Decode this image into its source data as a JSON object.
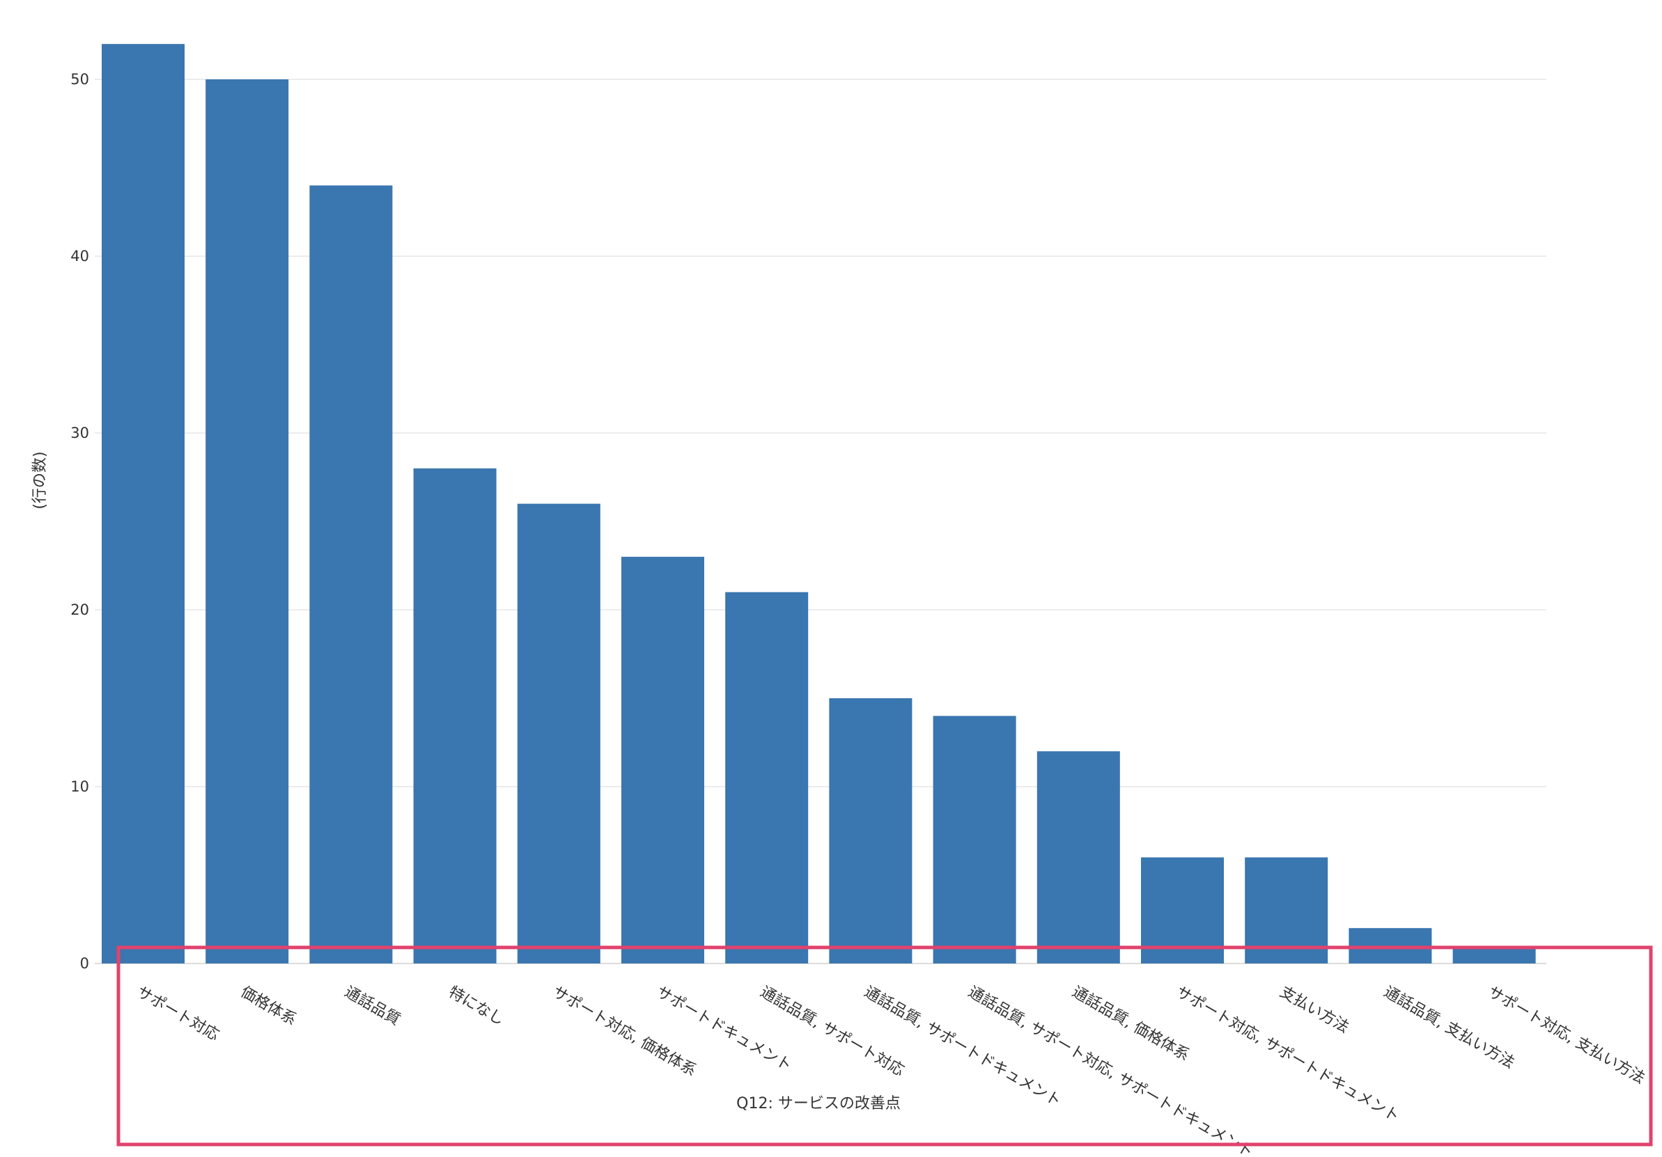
{
  "chart_data": {
    "type": "bar",
    "orientation": "vertical",
    "xlabel": "Q12: サービスの改善点",
    "ylabel": "(行の数)",
    "ylim": [
      0,
      52
    ],
    "yticks": [
      0,
      10,
      20,
      30,
      40,
      50
    ],
    "grid": true,
    "categories": [
      "サポート対応",
      "価格体系",
      "通話品質",
      "特になし",
      "サポート対応, 価格体系",
      "サポートドキュメント",
      "通話品質, サポート対応",
      "通話品質, サポートドキュメント",
      "通話品質, サポート対応, サポートドキュメント",
      "通話品質, 価格体系",
      "サポート対応, サポートドキュメント",
      "支払い方法",
      "通話品質, 支払い方法",
      "サポート対応, 支払い方法"
    ],
    "values": [
      52,
      50,
      44,
      28,
      26,
      23,
      21,
      15,
      14,
      12,
      6,
      6,
      2,
      1
    ],
    "colors": {
      "bar": "#3a76af",
      "highlight": "#e0436d",
      "grid": "#e6e6e6"
    }
  }
}
